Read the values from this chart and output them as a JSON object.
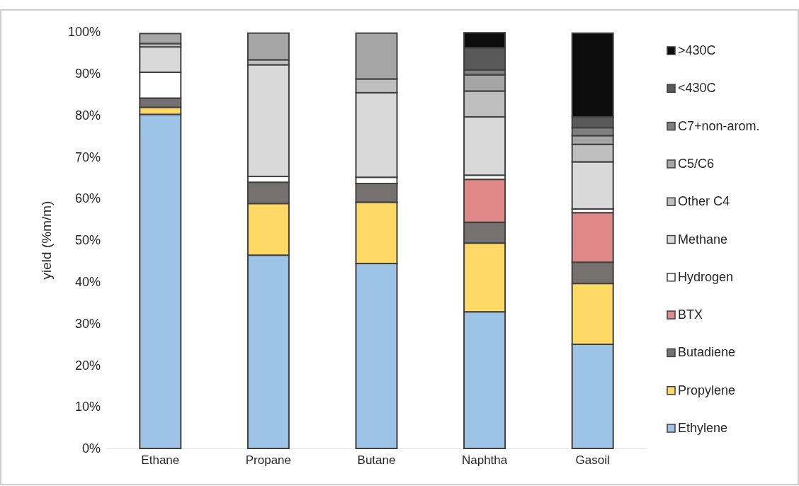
{
  "chart_data": {
    "type": "bar",
    "stacked": true,
    "ylabel": "yield (%m/m)",
    "categories": [
      "Ethane",
      "Propane",
      "Butane",
      "Naphtha",
      "Gasoil"
    ],
    "ylim": [
      0,
      100
    ],
    "yticks": [
      {
        "value": 0,
        "label": "0%"
      },
      {
        "value": 10,
        "label": "10%"
      },
      {
        "value": 20,
        "label": "20%"
      },
      {
        "value": 30,
        "label": "30%"
      },
      {
        "value": 40,
        "label": "40%"
      },
      {
        "value": 50,
        "label": "50%"
      },
      {
        "value": 60,
        "label": "60%"
      },
      {
        "value": 70,
        "label": "70%"
      },
      {
        "value": 80,
        "label": "80%"
      },
      {
        "value": 90,
        "label": "90%"
      },
      {
        "value": 100,
        "label": "100%"
      }
    ],
    "grid": false,
    "legend": "right",
    "series": [
      {
        "name": "Ethylene",
        "color": "#9dc3e6",
        "values": [
          80.2,
          46.4,
          44.4,
          32.8,
          25.0
        ]
      },
      {
        "name": "Propylene",
        "color": "#ffd966",
        "values": [
          1.7,
          12.4,
          14.7,
          16.5,
          14.6
        ]
      },
      {
        "name": "Butadiene",
        "color": "#767171",
        "values": [
          2.2,
          5.1,
          4.5,
          5.0,
          5.1
        ]
      },
      {
        "name": "BTX",
        "color": "#e08888",
        "values": [
          0,
          0,
          0,
          10.3,
          11.9
        ]
      },
      {
        "name": "Hydrogen",
        "color": "#ffffff",
        "values": [
          6.2,
          1.4,
          1.5,
          1.0,
          0.9
        ]
      },
      {
        "name": "Methane",
        "color": "#d9d9d9",
        "values": [
          6.1,
          26.8,
          20.3,
          14.0,
          11.3
        ]
      },
      {
        "name": "Other C4",
        "color": "#bfbfbf",
        "values": [
          0.8,
          1.2,
          3.3,
          6.2,
          4.2
        ]
      },
      {
        "name": "C5/C6",
        "color": "#a5a5a5",
        "values": [
          2.4,
          6.4,
          11.0,
          3.9,
          2.1
        ]
      },
      {
        "name": "C7+non-arom.",
        "color": "#7f7f7f",
        "values": [
          0,
          0,
          0,
          1.2,
          1.9
        ]
      },
      {
        "name": "<430C",
        "color": "#595959",
        "values": [
          0,
          0,
          0,
          5.3,
          2.6
        ]
      },
      {
        "name": ">430C",
        "color": "#0d0d0d",
        "values": [
          0,
          0,
          0,
          3.6,
          20.1
        ]
      }
    ]
  }
}
